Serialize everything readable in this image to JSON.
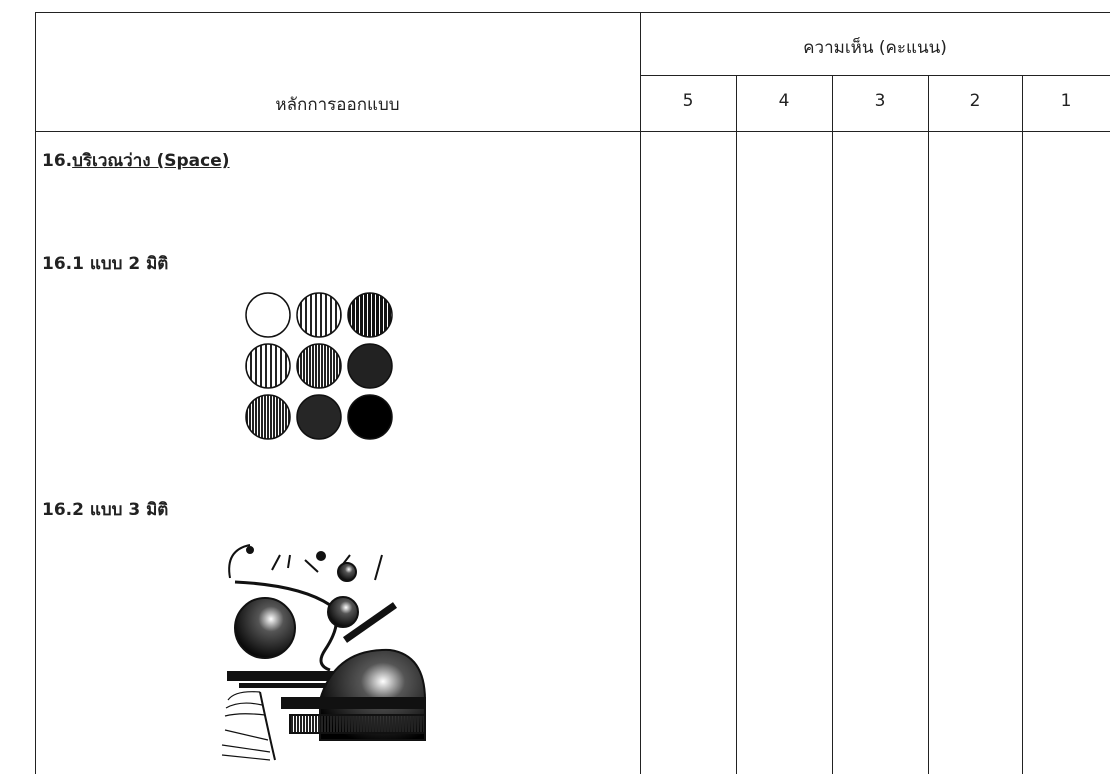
{
  "table": {
    "header": {
      "principle": "หลักการออกแบบ",
      "opinion": "ความเห็น (คะแนน)",
      "scores": [
        5,
        4,
        3,
        2,
        1
      ]
    },
    "section": {
      "number": "16.",
      "title": "บริเวณว่าง (Space)"
    },
    "items": [
      "16.1 แบบ 2 มิติ",
      "16.2 แบบ 3 มิติ"
    ]
  }
}
